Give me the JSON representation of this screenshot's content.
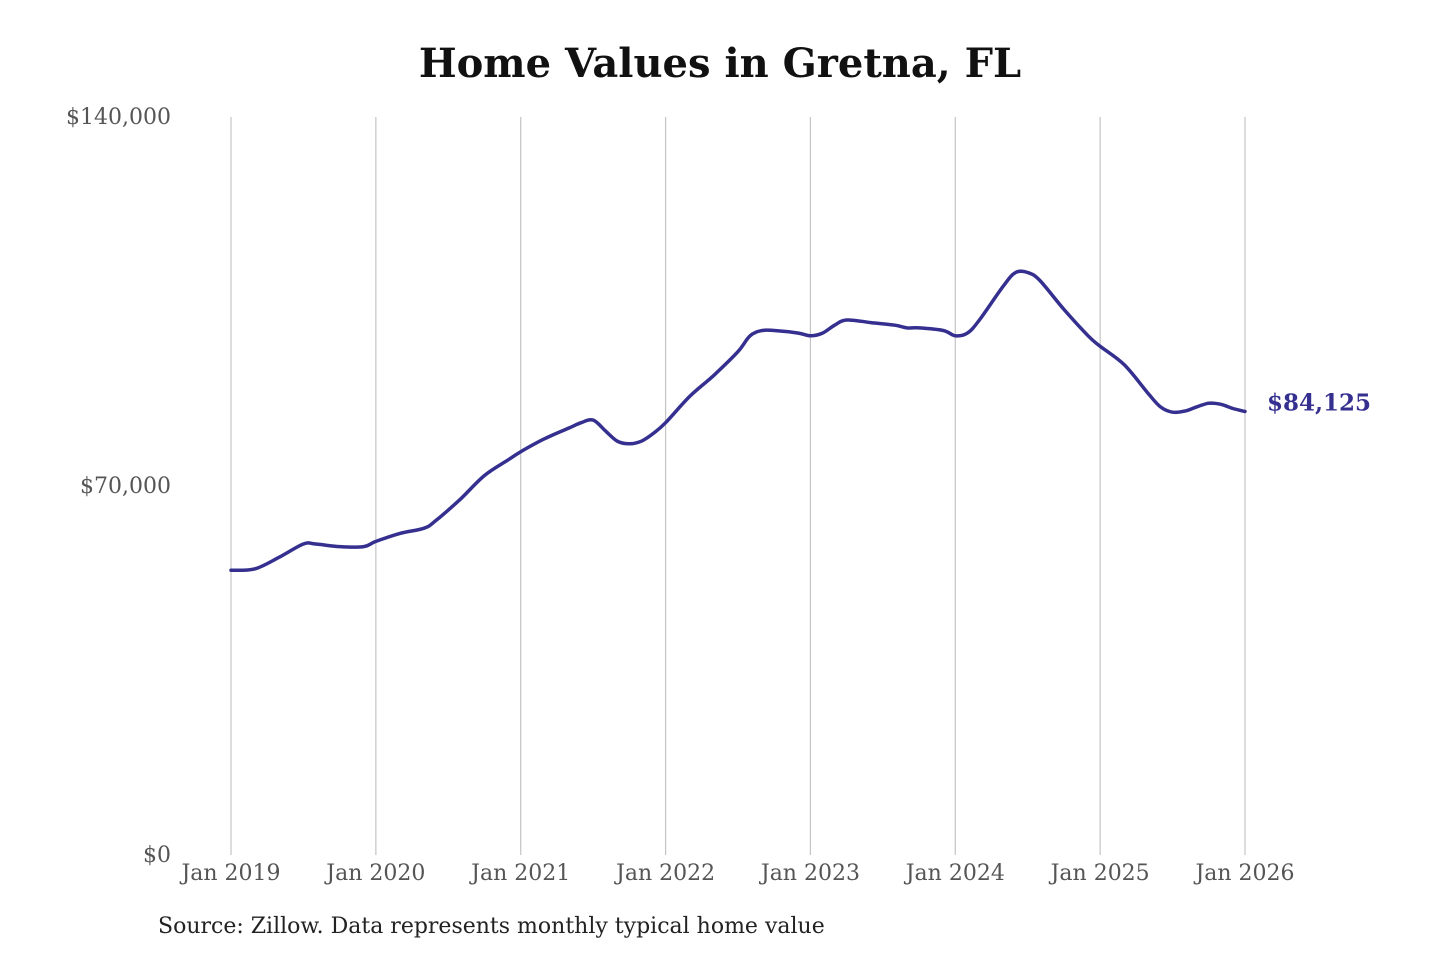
{
  "chart_data": {
    "type": "line",
    "title": "Home Values in Gretna, FL",
    "source": "Source: Zillow. Data represents monthly typical home value",
    "xlabel": "",
    "ylabel": "",
    "ylim": [
      0,
      140000
    ],
    "y_ticks": [
      0,
      70000,
      140000
    ],
    "y_tick_labels": [
      "$0",
      "$70,000",
      "$140,000"
    ],
    "x_ticks": [
      "2019-01",
      "2020-01",
      "2021-01",
      "2022-01",
      "2023-01",
      "2024-01",
      "2025-01",
      "2026-01"
    ],
    "x_tick_labels": [
      "Jan 2019",
      "Jan 2020",
      "Jan 2021",
      "Jan 2022",
      "Jan 2023",
      "Jan 2024",
      "Jan 2025",
      "Jan 2026"
    ],
    "x_grid": true,
    "y_grid": false,
    "legend": "none",
    "line_color": "#35308f",
    "end_label": "$84,125",
    "series": [
      {
        "x": [
          "2019-01",
          "2019-03",
          "2019-05",
          "2019-07",
          "2019-08",
          "2019-10",
          "2019-12",
          "2020-01",
          "2020-03",
          "2020-05",
          "2020-06",
          "2020-08",
          "2020-10",
          "2020-12",
          "2021-01",
          "2021-03",
          "2021-05",
          "2021-06",
          "2021-07",
          "2021-08",
          "2021-09",
          "2021-10",
          "2021-11",
          "2021-12",
          "2022-01",
          "2022-03",
          "2022-05",
          "2022-07",
          "2022-08",
          "2022-09",
          "2022-10",
          "2022-12",
          "2023-01",
          "2023-02",
          "2023-03",
          "2023-04",
          "2023-06",
          "2023-08",
          "2023-09",
          "2023-10",
          "2023-12",
          "2024-01",
          "2024-02",
          "2024-03",
          "2024-05",
          "2024-06",
          "2024-07",
          "2024-08",
          "2024-10",
          "2024-12",
          "2025-01",
          "2025-03",
          "2025-05",
          "2025-06",
          "2025-07",
          "2025-08",
          "2025-09",
          "2025-10",
          "2025-11",
          "2025-12",
          "2026-01"
        ],
        "y": [
          54000,
          54300,
          56500,
          59000,
          59000,
          58500,
          58500,
          59500,
          61000,
          62000,
          63500,
          67500,
          72000,
          75000,
          76500,
          79000,
          81000,
          82000,
          82500,
          80500,
          78500,
          78000,
          78500,
          80000,
          82000,
          87000,
          91000,
          95500,
          98500,
          99500,
          99500,
          99000,
          98500,
          99000,
          100500,
          101500,
          101000,
          100500,
          100000,
          100000,
          99500,
          98500,
          99000,
          101500,
          108000,
          110500,
          110500,
          109000,
          103500,
          98500,
          96500,
          93000,
          87500,
          85000,
          84000,
          84200,
          85000,
          85700,
          85500,
          84700,
          84125
        ]
      }
    ]
  }
}
